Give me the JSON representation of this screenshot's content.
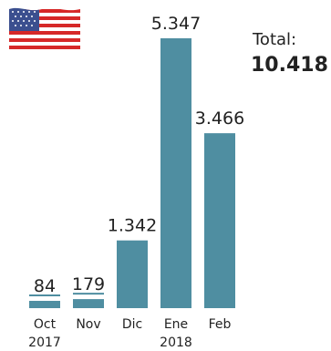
{
  "legend": {
    "flag_icon": "us-flag-icon"
  },
  "summary": {
    "total_label": "Total:",
    "total_value": "10.418"
  },
  "colors": {
    "bar": "#4f8ea1",
    "text": "#222222",
    "underline": "#4f8ea1"
  },
  "chart_data": {
    "type": "bar",
    "categories": [
      "Oct",
      "Nov",
      "Dic",
      "Ene",
      "Feb"
    ],
    "secondary_labels": [
      "2017",
      "",
      "",
      "2018",
      ""
    ],
    "values": [
      84,
      179,
      1342,
      5347,
      3466
    ],
    "value_labels": [
      "84",
      "179",
      "1.342",
      "5.347",
      "3.466"
    ],
    "title": "",
    "xlabel": "",
    "ylabel": "",
    "ylim": [
      0,
      5347
    ]
  }
}
